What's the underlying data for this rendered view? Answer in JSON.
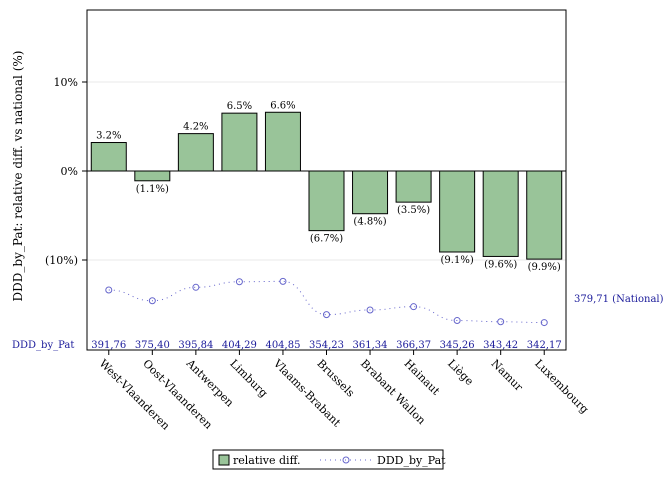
{
  "chart_data": {
    "type": "bar",
    "ylabel": "DDD_by_Pat: relative diff. vs national (%)",
    "ylim": [
      -15,
      18
    ],
    "yticks": [
      10,
      0,
      -10
    ],
    "ytick_labels": [
      "10%",
      "0%",
      "(10%)"
    ],
    "categories": [
      "West-Vlaanderen",
      "Oost-Vlaanderen",
      "Antwerpen",
      "Limburg",
      "Vlaams-Brabant",
      "Brussels",
      "Brabant Wallon",
      "Hainaut",
      "Liège",
      "Namur",
      "Luxembourg"
    ],
    "series": [
      {
        "name": "relative diff.",
        "values": [
          3.2,
          -1.1,
          4.2,
          6.5,
          6.6,
          -6.7,
          -4.8,
          -3.5,
          -9.1,
          -9.6,
          -9.9
        ],
        "labels": [
          "3.2%",
          "(1.1%)",
          "4.2%",
          "6.5%",
          "6.6%",
          "(6.7%)",
          "(4.8%)",
          "(3.5%)",
          "(9.1%)",
          "(9.6%)",
          "(9.9%)"
        ],
        "color": "#99c499"
      },
      {
        "name": "DDD_by_Pat",
        "values": [
          391.76,
          375.4,
          395.84,
          404.29,
          404.85,
          354.23,
          361.34,
          366.37,
          345.26,
          343.42,
          342.17
        ],
        "labels": [
          "391,76",
          "375,40",
          "395,84",
          "404,29",
          "404,85",
          "354,23",
          "361,34",
          "366,37",
          "345,26",
          "343,42",
          "342,17"
        ],
        "color": "#6666cc"
      }
    ],
    "row_title": "DDD_by_Pat",
    "national_value": 379.71,
    "national_label": "379,71 (National)",
    "legend_position": "bottom-center"
  }
}
